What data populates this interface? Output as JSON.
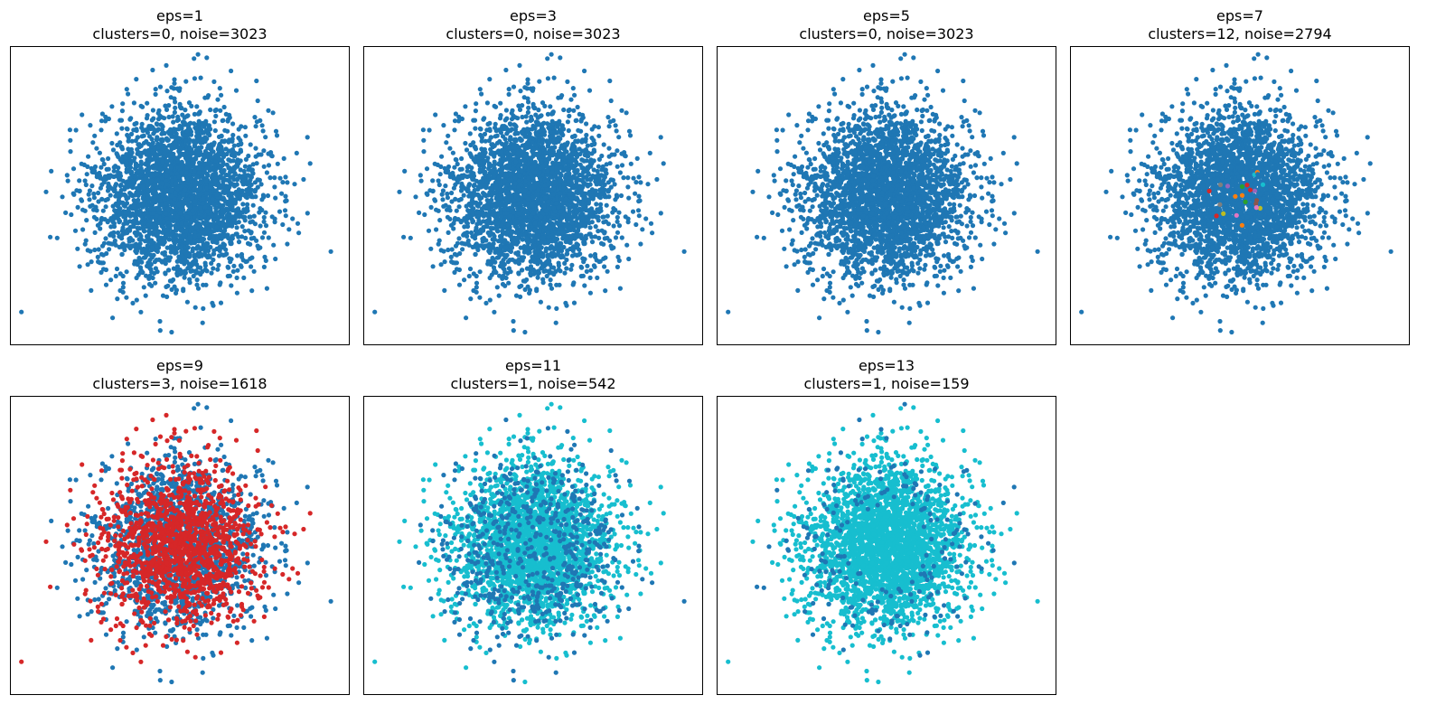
{
  "chart_data": [
    {
      "type": "scatter",
      "title_line1": "eps=1",
      "title_line2": "clusters=0, noise=3023",
      "clusters": 0,
      "noise": 3023,
      "colors": {
        "noise": "#1f77b4",
        "clusters": []
      }
    },
    {
      "type": "scatter",
      "title_line1": "eps=3",
      "title_line2": "clusters=0, noise=3023",
      "clusters": 0,
      "noise": 3023,
      "colors": {
        "noise": "#1f77b4",
        "clusters": []
      }
    },
    {
      "type": "scatter",
      "title_line1": "eps=5",
      "title_line2": "clusters=0, noise=3023",
      "clusters": 0,
      "noise": 3023,
      "colors": {
        "noise": "#1f77b4",
        "clusters": []
      }
    },
    {
      "type": "scatter",
      "title_line1": "eps=7",
      "title_line2": "clusters=12, noise=2794",
      "clusters": 12,
      "noise": 2794,
      "colors": {
        "noise": "#1f77b4",
        "clusters": [
          "#ff7f0e",
          "#2ca02c",
          "#d62728",
          "#9467bd",
          "#8c564b",
          "#e377c2",
          "#7f7f7f",
          "#bcbd22",
          "#17becf",
          "#1f77b4",
          "#ff7f0e",
          "#d62728"
        ]
      }
    },
    {
      "type": "scatter",
      "title_line1": "eps=9",
      "title_line2": "clusters=3, noise=1618",
      "clusters": 3,
      "noise": 1618,
      "colors": {
        "noise": "#1f77b4",
        "clusters": [
          "#d62728",
          "#d62728",
          "#d62728"
        ]
      }
    },
    {
      "type": "scatter",
      "title_line1": "eps=11",
      "title_line2": "clusters=1, noise=542",
      "clusters": 1,
      "noise": 542,
      "colors": {
        "noise": "#1f77b4",
        "clusters": [
          "#17becf"
        ]
      }
    },
    {
      "type": "scatter",
      "title_line1": "eps=13",
      "title_line2": "clusters=1, noise=159",
      "clusters": 1,
      "noise": 159,
      "colors": {
        "noise": "#1f77b4",
        "clusters": [
          "#17becf"
        ]
      }
    }
  ]
}
